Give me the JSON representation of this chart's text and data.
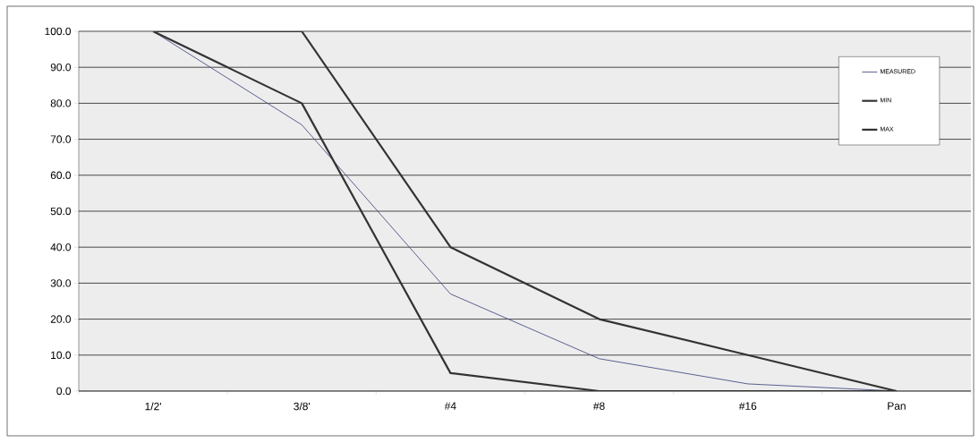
{
  "chart_data": {
    "type": "line",
    "categories": [
      "1/2'",
      "3/8'",
      "#4",
      "#8",
      "#16",
      "Pan"
    ],
    "series": [
      {
        "name": "MEASURED",
        "color": "#4a4f86",
        "values": [
          100,
          74,
          27,
          9,
          2,
          0
        ]
      },
      {
        "name": "MIN",
        "color": "#333333",
        "values": [
          100,
          80,
          5,
          0,
          0,
          0
        ]
      },
      {
        "name": "MAX",
        "color": "#333333",
        "values": [
          100,
          100,
          40,
          20,
          10,
          0
        ]
      }
    ],
    "ylim": [
      0,
      100
    ],
    "yticks": [
      {
        "value": 0,
        "label": "0.0"
      },
      {
        "value": 10,
        "label": "10.0"
      },
      {
        "value": 20,
        "label": "20.0"
      },
      {
        "value": 30,
        "label": "30.0"
      },
      {
        "value": 40,
        "label": "40.0"
      },
      {
        "value": 50,
        "label": "50.0"
      },
      {
        "value": 60,
        "label": "60.0"
      },
      {
        "value": 70,
        "label": "70.0"
      },
      {
        "value": 80,
        "label": "80.0"
      },
      {
        "value": 90,
        "label": "90.0"
      },
      {
        "value": 100,
        "label": "100.0"
      }
    ],
    "grid": "y",
    "legend": "top right",
    "line_style": "solid"
  }
}
